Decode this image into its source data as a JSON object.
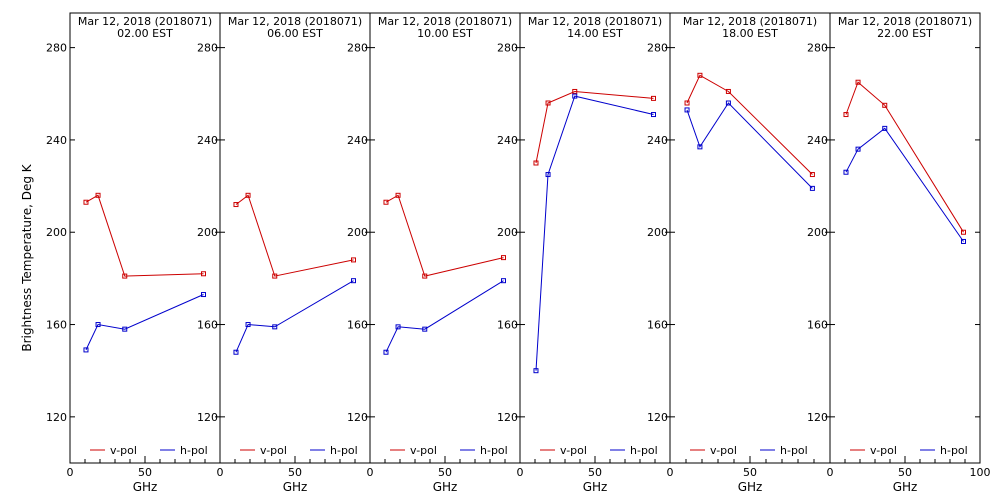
{
  "ylabel": "Brightness Temperature, Deg K",
  "chart_data": [
    {
      "type": "line",
      "title": "Mar 12, 2018 (2018071)",
      "subtitle": "02.00 EST",
      "xlabel": "GHz",
      "x_ticks": [
        "0",
        "50"
      ],
      "y_ticks": [
        "120",
        "160",
        "200",
        "240",
        "280"
      ],
      "y_ticks_side": "left",
      "xlim": [
        0,
        100
      ],
      "ylim": [
        100,
        295
      ],
      "series": [
        {
          "name": "v-pol",
          "color": "#cc0000",
          "x": [
            10.65,
            18.7,
            36.5,
            89.0
          ],
          "y": [
            213,
            216,
            181,
            182
          ]
        },
        {
          "name": "h-pol",
          "color": "#0000cc",
          "x": [
            10.65,
            18.7,
            36.5,
            89.0
          ],
          "y": [
            149,
            160,
            158,
            173
          ]
        }
      ]
    },
    {
      "type": "line",
      "title": "Mar 12, 2018 (2018071)",
      "subtitle": "06.00 EST",
      "xlabel": "GHz",
      "x_ticks": [
        "0",
        "50"
      ],
      "y_ticks": [
        "120",
        "160",
        "200",
        "240",
        "280"
      ],
      "y_ticks_side": "right",
      "xlim": [
        0,
        100
      ],
      "ylim": [
        100,
        295
      ],
      "series": [
        {
          "name": "v-pol",
          "color": "#cc0000",
          "x": [
            10.65,
            18.7,
            36.5,
            89.0
          ],
          "y": [
            212,
            216,
            181,
            188
          ]
        },
        {
          "name": "h-pol",
          "color": "#0000cc",
          "x": [
            10.65,
            18.7,
            36.5,
            89.0
          ],
          "y": [
            148,
            160,
            159,
            179
          ]
        }
      ]
    },
    {
      "type": "line",
      "title": "Mar 12, 2018 (2018071)",
      "subtitle": "10.00 EST",
      "xlabel": "GHz",
      "x_ticks": [
        "0",
        "50"
      ],
      "y_ticks": [
        "120",
        "160",
        "200",
        "240",
        "280"
      ],
      "y_ticks_side": "right",
      "xlim": [
        0,
        100
      ],
      "ylim": [
        100,
        295
      ],
      "series": [
        {
          "name": "v-pol",
          "color": "#cc0000",
          "x": [
            10.65,
            18.7,
            36.5,
            89.0
          ],
          "y": [
            213,
            216,
            181,
            189
          ]
        },
        {
          "name": "h-pol",
          "color": "#0000cc",
          "x": [
            10.65,
            18.7,
            36.5,
            89.0
          ],
          "y": [
            148,
            159,
            158,
            179
          ]
        }
      ]
    },
    {
      "type": "line",
      "title": "Mar 12, 2018 (2018071)",
      "subtitle": "14.00 EST",
      "xlabel": "GHz",
      "x_ticks": [
        "0",
        "50"
      ],
      "y_ticks": [
        "120",
        "160",
        "200",
        "240",
        "280"
      ],
      "y_ticks_side": "right",
      "xlim": [
        0,
        100
      ],
      "ylim": [
        100,
        295
      ],
      "series": [
        {
          "name": "v-pol",
          "color": "#cc0000",
          "x": [
            10.65,
            18.7,
            36.5,
            89.0
          ],
          "y": [
            230,
            256,
            261,
            258
          ]
        },
        {
          "name": "h-pol",
          "color": "#0000cc",
          "x": [
            10.65,
            18.7,
            36.5,
            89.0
          ],
          "y": [
            140,
            225,
            259,
            251
          ]
        }
      ]
    },
    {
      "type": "line",
      "title": "Mar 12, 2018 (2018071)",
      "subtitle": "18.00 EST",
      "xlabel": "GHz",
      "x_ticks": [
        "0",
        "50"
      ],
      "y_ticks": [
        "120",
        "160",
        "200",
        "240",
        "280"
      ],
      "y_ticks_side": "right",
      "xlim": [
        0,
        100
      ],
      "ylim": [
        100,
        295
      ],
      "series": [
        {
          "name": "v-pol",
          "color": "#cc0000",
          "x": [
            10.65,
            18.7,
            36.5,
            89.0
          ],
          "y": [
            256,
            268,
            261,
            225
          ]
        },
        {
          "name": "h-pol",
          "color": "#0000cc",
          "x": [
            10.65,
            18.7,
            36.5,
            89.0
          ],
          "y": [
            253,
            237,
            256,
            219
          ]
        }
      ]
    },
    {
      "type": "line",
      "title": "Mar 12, 2018 (2018071)",
      "subtitle": "22.00 EST",
      "xlabel": "GHz",
      "x_ticks": [
        "0",
        "50",
        "100"
      ],
      "y_ticks": [
        "120",
        "160",
        "200",
        "240",
        "280"
      ],
      "y_ticks_side": "right",
      "xlim": [
        0,
        100
      ],
      "ylim": [
        100,
        295
      ],
      "series": [
        {
          "name": "v-pol",
          "color": "#cc0000",
          "x": [
            10.65,
            18.7,
            36.5,
            89.0
          ],
          "y": [
            251,
            265,
            255,
            200
          ]
        },
        {
          "name": "h-pol",
          "color": "#0000cc",
          "x": [
            10.65,
            18.7,
            36.5,
            89.0
          ],
          "y": [
            226,
            236,
            245,
            196
          ]
        }
      ]
    }
  ]
}
